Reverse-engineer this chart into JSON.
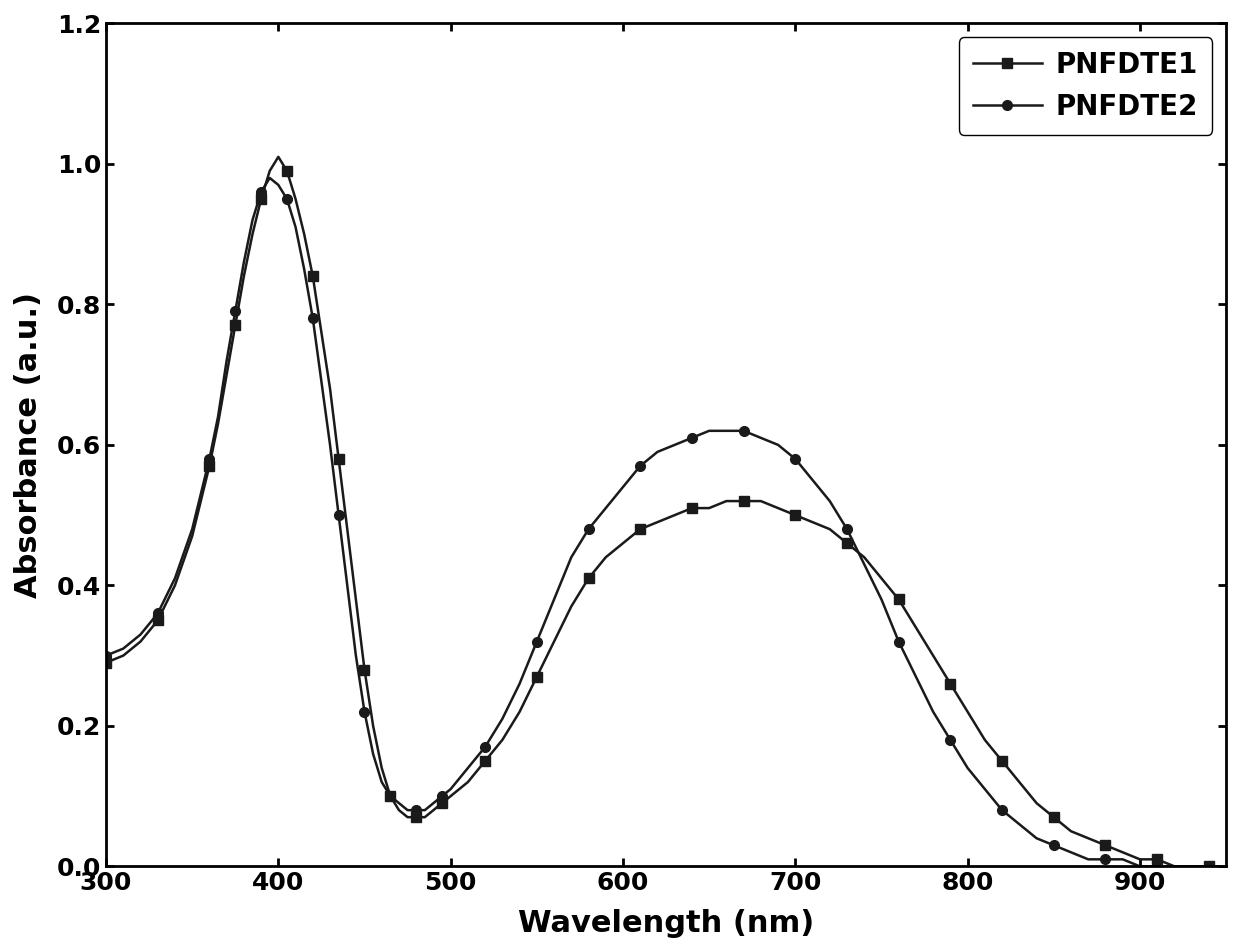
{
  "title": "",
  "xlabel": "Wavelength (nm)",
  "ylabel": "Absorbance (a.u.)",
  "xlim": [
    300,
    950
  ],
  "ylim": [
    0,
    1.2
  ],
  "xticks": [
    300,
    400,
    500,
    600,
    700,
    800,
    900
  ],
  "yticks": [
    0.0,
    0.2,
    0.4,
    0.6,
    0.8,
    1.0,
    1.2
  ],
  "line_color": "#1a1a1a",
  "marker_size": 7,
  "linewidth": 1.8,
  "legend_labels": [
    "PNFDTE1",
    "PNFDTE2"
  ],
  "legend_markers": [
    "s",
    "o"
  ],
  "PNFDTE1_x": [
    300,
    310,
    320,
    330,
    340,
    350,
    360,
    365,
    370,
    375,
    380,
    385,
    390,
    395,
    400,
    405,
    410,
    415,
    420,
    425,
    430,
    435,
    440,
    445,
    450,
    455,
    460,
    465,
    470,
    475,
    480,
    485,
    490,
    495,
    500,
    510,
    520,
    530,
    540,
    550,
    560,
    570,
    580,
    590,
    600,
    610,
    620,
    630,
    640,
    650,
    660,
    670,
    680,
    690,
    700,
    710,
    720,
    730,
    740,
    750,
    760,
    770,
    780,
    790,
    800,
    810,
    820,
    830,
    840,
    850,
    860,
    870,
    880,
    890,
    900,
    910,
    920,
    930,
    940,
    950
  ],
  "PNFDTE1_y": [
    0.29,
    0.3,
    0.32,
    0.35,
    0.4,
    0.47,
    0.57,
    0.63,
    0.7,
    0.77,
    0.84,
    0.9,
    0.95,
    0.99,
    1.01,
    0.99,
    0.95,
    0.9,
    0.84,
    0.76,
    0.68,
    0.58,
    0.48,
    0.38,
    0.28,
    0.2,
    0.14,
    0.1,
    0.08,
    0.07,
    0.07,
    0.07,
    0.08,
    0.09,
    0.1,
    0.12,
    0.15,
    0.18,
    0.22,
    0.27,
    0.32,
    0.37,
    0.41,
    0.44,
    0.46,
    0.48,
    0.49,
    0.5,
    0.51,
    0.51,
    0.52,
    0.52,
    0.52,
    0.51,
    0.5,
    0.49,
    0.48,
    0.46,
    0.44,
    0.41,
    0.38,
    0.34,
    0.3,
    0.26,
    0.22,
    0.18,
    0.15,
    0.12,
    0.09,
    0.07,
    0.05,
    0.04,
    0.03,
    0.02,
    0.01,
    0.01,
    0.0,
    0.0,
    0.0,
    0.0
  ],
  "PNFDTE2_x": [
    300,
    310,
    320,
    330,
    340,
    350,
    360,
    365,
    370,
    375,
    380,
    385,
    390,
    395,
    400,
    405,
    410,
    415,
    420,
    425,
    430,
    435,
    440,
    445,
    450,
    455,
    460,
    465,
    470,
    475,
    480,
    485,
    490,
    495,
    500,
    510,
    520,
    530,
    540,
    550,
    560,
    570,
    580,
    590,
    600,
    610,
    620,
    630,
    640,
    650,
    660,
    670,
    680,
    690,
    700,
    710,
    720,
    730,
    740,
    750,
    760,
    770,
    780,
    790,
    800,
    810,
    820,
    830,
    840,
    850,
    860,
    870,
    880,
    890,
    900,
    910,
    920,
    930,
    940,
    950
  ],
  "PNFDTE2_y": [
    0.3,
    0.31,
    0.33,
    0.36,
    0.41,
    0.48,
    0.58,
    0.64,
    0.72,
    0.79,
    0.86,
    0.92,
    0.96,
    0.98,
    0.97,
    0.95,
    0.91,
    0.85,
    0.78,
    0.69,
    0.6,
    0.5,
    0.4,
    0.3,
    0.22,
    0.16,
    0.12,
    0.1,
    0.09,
    0.08,
    0.08,
    0.08,
    0.09,
    0.1,
    0.11,
    0.14,
    0.17,
    0.21,
    0.26,
    0.32,
    0.38,
    0.44,
    0.48,
    0.51,
    0.54,
    0.57,
    0.59,
    0.6,
    0.61,
    0.62,
    0.62,
    0.62,
    0.61,
    0.6,
    0.58,
    0.55,
    0.52,
    0.48,
    0.43,
    0.38,
    0.32,
    0.27,
    0.22,
    0.18,
    0.14,
    0.11,
    0.08,
    0.06,
    0.04,
    0.03,
    0.02,
    0.01,
    0.01,
    0.01,
    0.0,
    0.0,
    0.0,
    0.0,
    0.0,
    0.0
  ]
}
